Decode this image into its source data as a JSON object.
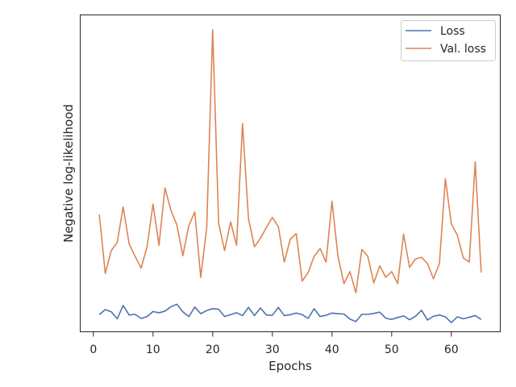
{
  "chart_data": {
    "type": "line",
    "title": "",
    "xlabel": "Epochs",
    "ylabel": "Negative log-likelihood",
    "xlim": [
      -2.2,
      68.2
    ],
    "ylim": [
      0,
      100
    ],
    "xticks": [
      0,
      10,
      20,
      30,
      40,
      50,
      60
    ],
    "y_tick_labels_shown": false,
    "grid": false,
    "legend_position": "top-right",
    "colors": {
      "Loss": "#4c72b0",
      "Val. loss": "#dd8452",
      "axes": "#262626"
    },
    "x": [
      1,
      2,
      3,
      4,
      5,
      6,
      7,
      8,
      9,
      10,
      11,
      12,
      13,
      14,
      15,
      16,
      17,
      18,
      19,
      20,
      21,
      22,
      23,
      24,
      25,
      26,
      27,
      28,
      29,
      30,
      31,
      32,
      33,
      34,
      35,
      36,
      37,
      38,
      39,
      40,
      41,
      42,
      43,
      44,
      45,
      46,
      47,
      48,
      49,
      50,
      51,
      52,
      53,
      54,
      55,
      56,
      57,
      58,
      59,
      60,
      61,
      62,
      63,
      64,
      65
    ],
    "series": [
      {
        "name": "Loss",
        "values": [
          5.4,
          7.0,
          6.3,
          4.1,
          8.3,
          5.3,
          5.5,
          4.2,
          4.8,
          6.4,
          6.0,
          6.5,
          7.9,
          8.7,
          6.3,
          4.8,
          7.8,
          5.7,
          6.7,
          7.3,
          7.1,
          4.8,
          5.4,
          6.0,
          5.1,
          7.7,
          5.1,
          7.5,
          5.3,
          5.2,
          7.7,
          5.1,
          5.4,
          5.9,
          5.4,
          4.2,
          7.3,
          4.8,
          5.2,
          5.9,
          5.7,
          5.6,
          4.0,
          3.2,
          5.5,
          5.5,
          5.8,
          6.2,
          4.3,
          3.9,
          4.5,
          5.0,
          3.8,
          4.9,
          6.8,
          3.7,
          4.9,
          5.3,
          4.7,
          2.9,
          4.7,
          4.1,
          4.6,
          5.1,
          3.9
        ]
      },
      {
        "name": "Val. loss",
        "values": [
          37.0,
          18.4,
          25.6,
          28.2,
          39.4,
          27.7,
          23.8,
          20.1,
          26.8,
          40.3,
          27.3,
          45.4,
          38.3,
          33.7,
          24.0,
          33.5,
          37.8,
          17.2,
          32.9,
          95.3,
          34.2,
          25.6,
          34.7,
          27.3,
          65.7,
          35.7,
          26.8,
          29.5,
          32.9,
          36.1,
          33.2,
          22.0,
          29.2,
          31.0,
          16.0,
          18.7,
          23.8,
          26.3,
          22.0,
          41.2,
          23.8,
          15.2,
          19.0,
          12.3,
          26.0,
          23.8,
          15.4,
          20.8,
          17.2,
          19.0,
          15.2,
          30.8,
          20.3,
          23.0,
          23.5,
          21.5,
          16.7,
          21.5,
          48.3,
          34.0,
          30.5,
          23.3,
          22.0,
          53.6,
          18.7
        ]
      }
    ]
  }
}
